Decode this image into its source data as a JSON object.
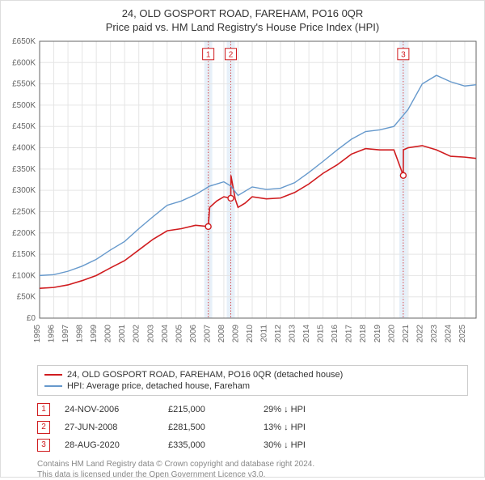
{
  "title_line1": "24, OLD GOSPORT ROAD, FAREHAM, PO16 0QR",
  "title_line2": "Price paid vs. HM Land Registry's House Price Index (HPI)",
  "chart": {
    "type": "line",
    "xlim": [
      1995,
      2025.8
    ],
    "ylim": [
      0,
      650000
    ],
    "ytick_step": 50000,
    "xtick_step": 1,
    "label_fontsize": 10,
    "axis_color": "#666666",
    "grid_color": "#e5e5e5",
    "background_color": "#ffffff",
    "highlight_band_color": "#cfe2f3",
    "highlight_band_opacity": 0.5,
    "highlight_line_color": "#d01c1f",
    "y_labels": [
      "£0",
      "£50K",
      "£100K",
      "£150K",
      "£200K",
      "£250K",
      "£300K",
      "£350K",
      "£400K",
      "£450K",
      "£500K",
      "£550K",
      "£600K",
      "£650K"
    ],
    "x_labels": [
      "1995",
      "1996",
      "1997",
      "1998",
      "1999",
      "2000",
      "2001",
      "2002",
      "2003",
      "2004",
      "2005",
      "2006",
      "2007",
      "2008",
      "2009",
      "2010",
      "2011",
      "2012",
      "2013",
      "2014",
      "2015",
      "2016",
      "2017",
      "2018",
      "2019",
      "2020",
      "2021",
      "2022",
      "2023",
      "2024",
      "2025"
    ],
    "series": [
      {
        "name": "price_paid",
        "legend": "24, OLD GOSPORT ROAD, FAREHAM, PO16 0QR (detached house)",
        "color": "#d01c1f",
        "line_width": 1.6,
        "data": [
          [
            1995.0,
            70000
          ],
          [
            1996.0,
            72000
          ],
          [
            1997.0,
            78000
          ],
          [
            1998.0,
            88000
          ],
          [
            1999.0,
            100000
          ],
          [
            2000.0,
            118000
          ],
          [
            2001.0,
            135000
          ],
          [
            2002.0,
            160000
          ],
          [
            2003.0,
            185000
          ],
          [
            2004.0,
            205000
          ],
          [
            2005.0,
            210000
          ],
          [
            2006.0,
            218000
          ],
          [
            2006.9,
            215000
          ],
          [
            2007.0,
            260000
          ],
          [
            2007.5,
            275000
          ],
          [
            2008.0,
            285000
          ],
          [
            2008.49,
            281500
          ],
          [
            2008.5,
            335000
          ],
          [
            2008.8,
            280000
          ],
          [
            2009.0,
            260000
          ],
          [
            2009.5,
            270000
          ],
          [
            2010.0,
            285000
          ],
          [
            2011.0,
            280000
          ],
          [
            2012.0,
            282000
          ],
          [
            2013.0,
            295000
          ],
          [
            2014.0,
            315000
          ],
          [
            2015.0,
            340000
          ],
          [
            2016.0,
            360000
          ],
          [
            2017.0,
            385000
          ],
          [
            2018.0,
            398000
          ],
          [
            2019.0,
            395000
          ],
          [
            2020.0,
            395000
          ],
          [
            2020.66,
            335000
          ],
          [
            2020.67,
            395000
          ],
          [
            2021.0,
            400000
          ],
          [
            2022.0,
            405000
          ],
          [
            2023.0,
            395000
          ],
          [
            2024.0,
            380000
          ],
          [
            2025.0,
            378000
          ],
          [
            2025.8,
            375000
          ]
        ]
      },
      {
        "name": "hpi",
        "legend": "HPI: Average price, detached house, Fareham",
        "color": "#6699cc",
        "line_width": 1.4,
        "data": [
          [
            1995.0,
            100000
          ],
          [
            1996.0,
            102000
          ],
          [
            1997.0,
            110000
          ],
          [
            1998.0,
            122000
          ],
          [
            1999.0,
            138000
          ],
          [
            2000.0,
            160000
          ],
          [
            2001.0,
            180000
          ],
          [
            2002.0,
            210000
          ],
          [
            2003.0,
            238000
          ],
          [
            2004.0,
            265000
          ],
          [
            2005.0,
            275000
          ],
          [
            2006.0,
            290000
          ],
          [
            2007.0,
            310000
          ],
          [
            2008.0,
            320000
          ],
          [
            2008.5,
            310000
          ],
          [
            2009.0,
            288000
          ],
          [
            2010.0,
            308000
          ],
          [
            2011.0,
            302000
          ],
          [
            2012.0,
            305000
          ],
          [
            2013.0,
            318000
          ],
          [
            2014.0,
            342000
          ],
          [
            2015.0,
            368000
          ],
          [
            2016.0,
            395000
          ],
          [
            2017.0,
            420000
          ],
          [
            2018.0,
            438000
          ],
          [
            2019.0,
            442000
          ],
          [
            2020.0,
            450000
          ],
          [
            2021.0,
            490000
          ],
          [
            2022.0,
            550000
          ],
          [
            2023.0,
            570000
          ],
          [
            2024.0,
            555000
          ],
          [
            2025.0,
            545000
          ],
          [
            2025.8,
            548000
          ]
        ]
      }
    ],
    "sale_markers": [
      {
        "n": "1",
        "x": 2006.9,
        "y": 215000,
        "box_y": 620000
      },
      {
        "n": "2",
        "x": 2008.49,
        "y": 281500,
        "box_y": 620000
      },
      {
        "n": "3",
        "x": 2020.66,
        "y": 335000,
        "box_y": 620000
      }
    ]
  },
  "legend_title_series1": "24, OLD GOSPORT ROAD, FAREHAM, PO16 0QR (detached house)",
  "legend_title_series2": "HPI: Average price, detached house, Fareham",
  "sales": [
    {
      "n": "1",
      "date": "24-NOV-2006",
      "price": "£215,000",
      "delta": "29% ↓ HPI"
    },
    {
      "n": "2",
      "date": "27-JUN-2008",
      "price": "£281,500",
      "delta": "13% ↓ HPI"
    },
    {
      "n": "3",
      "date": "28-AUG-2020",
      "price": "£335,000",
      "delta": "30% ↓ HPI"
    }
  ],
  "sale_badge_color": "#d01c1f",
  "attribution_line1": "Contains HM Land Registry data © Crown copyright and database right 2024.",
  "attribution_line2": "This data is licensed under the Open Government Licence v3.0."
}
